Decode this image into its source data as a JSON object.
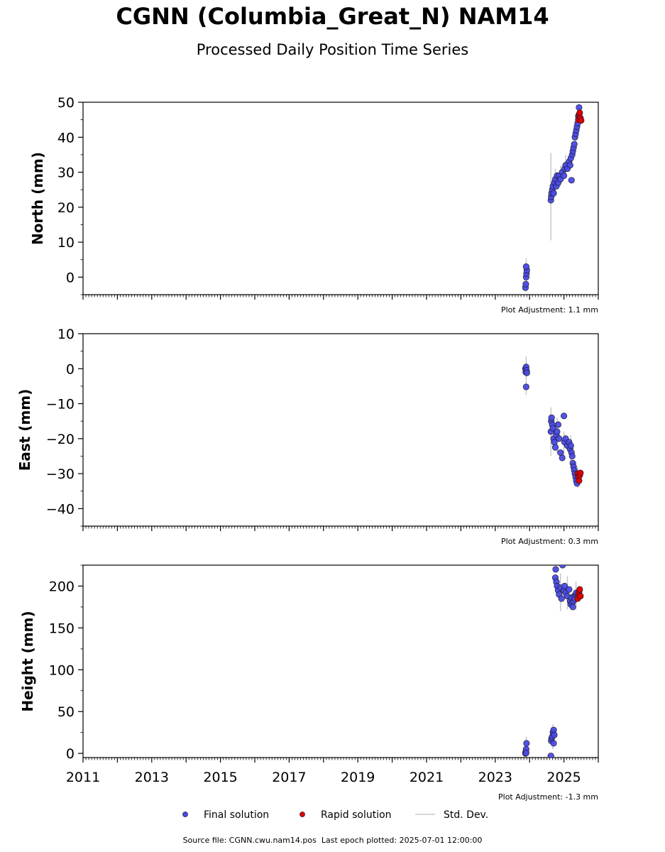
{
  "figure": {
    "title": "CGNN (Columbia_Great_N) NAM14",
    "subtitle": "Processed Daily Position Time Series",
    "footer_source": "Source file: CGNN.cwu.nam14.pos",
    "footer_epoch": "Last epoch plotted: 2025-07-01 12:00:00"
  },
  "colors": {
    "final": "#4a4ae6",
    "rapid": "#e00000",
    "stddev": "#c8c8c8",
    "marker_edge": "#1a1a2e"
  },
  "chart_data": [
    {
      "type": "scatter",
      "name": "north",
      "ylabel": "North (mm)",
      "ylim": [
        -5,
        50
      ],
      "yticks": [
        0,
        10,
        20,
        30,
        40,
        50
      ],
      "xlim": [
        2011,
        2026
      ],
      "show_xtick_labels": false,
      "adjustment": "Plot Adjustment: 1.1 mm",
      "final": [
        [
          2023.88,
          -3
        ],
        [
          2023.89,
          -2
        ],
        [
          2023.9,
          0
        ],
        [
          2023.91,
          1
        ],
        [
          2023.92,
          2
        ],
        [
          2023.9,
          3
        ],
        [
          2024.62,
          22
        ],
        [
          2024.63,
          23
        ],
        [
          2024.64,
          24
        ],
        [
          2024.66,
          25
        ],
        [
          2024.68,
          26
        ],
        [
          2024.7,
          24
        ],
        [
          2024.72,
          27
        ],
        [
          2024.75,
          28
        ],
        [
          2024.78,
          26
        ],
        [
          2024.8,
          29
        ],
        [
          2024.83,
          27
        ],
        [
          2024.86,
          29
        ],
        [
          2024.9,
          28
        ],
        [
          2024.95,
          30
        ],
        [
          2025.0,
          29
        ],
        [
          2025.02,
          31
        ],
        [
          2025.05,
          32
        ],
        [
          2025.1,
          31
        ],
        [
          2025.15,
          33
        ],
        [
          2025.18,
          32
        ],
        [
          2025.2,
          34
        ],
        [
          2025.22,
          27.7
        ],
        [
          2025.24,
          35
        ],
        [
          2025.26,
          36
        ],
        [
          2025.28,
          37
        ],
        [
          2025.3,
          38
        ],
        [
          2025.32,
          40
        ],
        [
          2025.34,
          41
        ],
        [
          2025.36,
          42
        ],
        [
          2025.38,
          43
        ],
        [
          2025.4,
          44
        ],
        [
          2025.42,
          46
        ],
        [
          2025.44,
          48.5
        ]
      ],
      "rapid": [
        [
          2025.42,
          45
        ],
        [
          2025.44,
          46.5
        ],
        [
          2025.46,
          47
        ],
        [
          2025.48,
          45.5
        ],
        [
          2025.5,
          44.8
        ]
      ],
      "stddev": [
        [
          2024.62,
          10.5,
          35.5
        ],
        [
          2023.9,
          -4,
          5.5
        ],
        [
          2024.75,
          24,
          31
        ],
        [
          2024.9,
          26,
          32
        ],
        [
          2025.05,
          29,
          35
        ],
        [
          2025.2,
          31,
          37
        ],
        [
          2025.35,
          38,
          46
        ],
        [
          2025.45,
          43,
          49
        ]
      ]
    },
    {
      "type": "scatter",
      "name": "east",
      "ylabel": "East (mm)",
      "ylim": [
        -45,
        10
      ],
      "yticks": [
        -40,
        -30,
        -20,
        -10,
        0,
        10
      ],
      "xlim": [
        2011,
        2026
      ],
      "show_xtick_labels": false,
      "adjustment": "Plot Adjustment: 0.3 mm",
      "final": [
        [
          2023.88,
          0
        ],
        [
          2023.89,
          -1
        ],
        [
          2023.9,
          0.5
        ],
        [
          2023.91,
          -0.5
        ],
        [
          2023.92,
          -1.2
        ],
        [
          2023.9,
          -5.2
        ],
        [
          2024.62,
          -18
        ],
        [
          2024.63,
          -15
        ],
        [
          2024.64,
          -14
        ],
        [
          2024.66,
          -16
        ],
        [
          2024.68,
          -17
        ],
        [
          2024.7,
          -20
        ],
        [
          2024.72,
          -21
        ],
        [
          2024.75,
          -22.5
        ],
        [
          2024.78,
          -19
        ],
        [
          2024.8,
          -18
        ],
        [
          2024.83,
          -16
        ],
        [
          2024.86,
          -20
        ],
        [
          2024.9,
          -24
        ],
        [
          2024.95,
          -25.5
        ],
        [
          2025.0,
          -13.5
        ],
        [
          2025.02,
          -21
        ],
        [
          2025.05,
          -20
        ],
        [
          2025.1,
          -22
        ],
        [
          2025.15,
          -21
        ],
        [
          2025.18,
          -23
        ],
        [
          2025.2,
          -22
        ],
        [
          2025.22,
          -24
        ],
        [
          2025.24,
          -25
        ],
        [
          2025.26,
          -27
        ],
        [
          2025.28,
          -28
        ],
        [
          2025.3,
          -29
        ],
        [
          2025.32,
          -30
        ],
        [
          2025.34,
          -31
        ],
        [
          2025.36,
          -32
        ],
        [
          2025.38,
          -32.8
        ]
      ],
      "rapid": [
        [
          2025.4,
          -30
        ],
        [
          2025.42,
          -31
        ],
        [
          2025.44,
          -32
        ],
        [
          2025.46,
          -30.5
        ],
        [
          2025.48,
          -29.8
        ]
      ],
      "stddev": [
        [
          2024.62,
          -25,
          -11
        ],
        [
          2023.9,
          -7.5,
          3.5
        ],
        [
          2024.8,
          -24,
          -14
        ],
        [
          2025.0,
          -26,
          -18
        ],
        [
          2025.2,
          -27,
          -19
        ],
        [
          2025.4,
          -34,
          -28
        ]
      ]
    },
    {
      "type": "scatter",
      "name": "height",
      "ylabel": "Height (mm)",
      "ylim": [
        -5,
        225
      ],
      "yticks": [
        0,
        50,
        100,
        150,
        200
      ],
      "xlim": [
        2011,
        2026
      ],
      "xticks": [
        2011,
        2013,
        2015,
        2017,
        2019,
        2021,
        2023,
        2025
      ],
      "show_xtick_labels": true,
      "adjustment": "Plot Adjustment: -1.3 mm",
      "final": [
        [
          2023.88,
          0
        ],
        [
          2023.89,
          2
        ],
        [
          2023.9,
          5
        ],
        [
          2023.91,
          12
        ],
        [
          2023.9,
          0.5
        ],
        [
          2024.62,
          -3
        ],
        [
          2024.63,
          15
        ],
        [
          2024.64,
          18
        ],
        [
          2024.66,
          20
        ],
        [
          2024.68,
          25
        ],
        [
          2024.7,
          28
        ],
        [
          2024.72,
          22
        ],
        [
          2024.7,
          12
        ],
        [
          2024.75,
          210
        ],
        [
          2024.76,
          220
        ],
        [
          2024.78,
          205
        ],
        [
          2024.8,
          200
        ],
        [
          2024.83,
          195
        ],
        [
          2024.86,
          190
        ],
        [
          2024.9,
          198
        ],
        [
          2024.93,
          185
        ],
        [
          2024.96,
          225
        ],
        [
          2025.0,
          195
        ],
        [
          2025.02,
          200
        ],
        [
          2025.05,
          192
        ],
        [
          2025.1,
          188
        ],
        [
          2025.15,
          196
        ],
        [
          2025.18,
          182
        ],
        [
          2025.2,
          178
        ],
        [
          2025.22,
          186
        ],
        [
          2025.24,
          180
        ],
        [
          2025.26,
          175
        ],
        [
          2025.28,
          182
        ],
        [
          2025.3,
          188
        ],
        [
          2025.32,
          185
        ],
        [
          2025.34,
          190
        ],
        [
          2025.36,
          192
        ]
      ],
      "rapid": [
        [
          2025.4,
          185
        ],
        [
          2025.42,
          190
        ],
        [
          2025.44,
          193
        ],
        [
          2025.46,
          196
        ],
        [
          2025.48,
          188
        ]
      ],
      "stddev": [
        [
          2023.9,
          -4,
          20
        ],
        [
          2024.68,
          5,
          35
        ],
        [
          2024.9,
          170,
          215
        ],
        [
          2025.1,
          172,
          212
        ],
        [
          2025.35,
          172,
          205
        ]
      ]
    }
  ],
  "legend": {
    "placement": "bottom-center",
    "items": [
      "Final solution",
      "Rapid solution",
      "Std. Dev."
    ]
  }
}
